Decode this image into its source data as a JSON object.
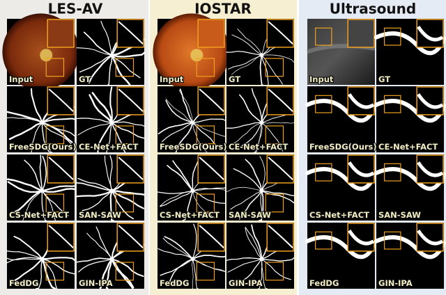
{
  "panels": [
    {
      "title": "LES-AV",
      "tiles": [
        "Input",
        "GT",
        "FreeSDG(Ours)",
        "CE-Net+FACT",
        "CS-Net+FACT",
        "SAN-SAW",
        "FedDG",
        "GIN-IPA"
      ]
    },
    {
      "title": "IOSTAR",
      "tiles": [
        "Input",
        "GT",
        "FreeSDG(Ours)",
        "CE-Net+FACT",
        "CS-Net+FACT",
        "SAN-SAW",
        "FedDG",
        "GIN-IPA"
      ]
    },
    {
      "title": "Ultrasound",
      "tiles": [
        "Input",
        "GT",
        "FreeSDG(Ours)",
        "CE-Net+FACT",
        "CS-Net+FACT",
        "SAN-SAW",
        "FedDG",
        "GIN-IPA"
      ]
    }
  ]
}
